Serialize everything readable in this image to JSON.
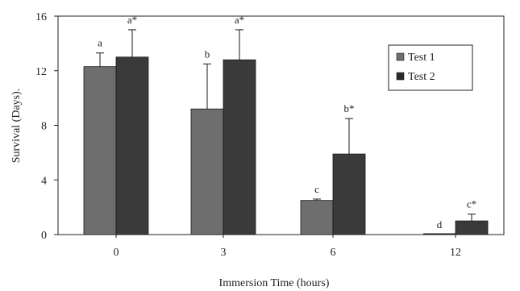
{
  "chart_data": {
    "type": "bar",
    "xlabel": "Immersion Time (hours)",
    "ylabel": "Survival (Days).",
    "categories": [
      "0",
      "3",
      "6",
      "12"
    ],
    "ylim": [
      0,
      16
    ],
    "yticks": [
      "0",
      "4",
      "8",
      "12",
      "16"
    ],
    "grid": false,
    "legend_position": "top-right",
    "series": [
      {
        "name": "Test 1",
        "color": "#6e6e6e",
        "values": [
          12.3,
          9.2,
          2.5,
          0
        ],
        "errors": [
          1.0,
          3.3,
          0.1,
          0
        ],
        "labels": [
          "a",
          "b",
          "c",
          "d"
        ]
      },
      {
        "name": "Test 2",
        "color": "#3a3a3a",
        "values": [
          13.0,
          12.8,
          5.9,
          1.0
        ],
        "errors": [
          2.0,
          2.2,
          2.6,
          0.5
        ],
        "labels": [
          "a*",
          "a*",
          "b*",
          "c*"
        ]
      }
    ]
  }
}
